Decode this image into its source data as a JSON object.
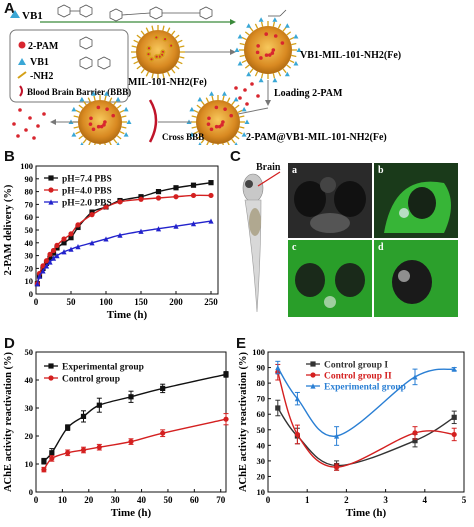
{
  "panels": {
    "A": {
      "label": "A",
      "top_left_label": "VB1",
      "legend": [
        {
          "name": "2-PAM",
          "color": "#d8262f"
        },
        {
          "name": "VB1",
          "color": "#3aa7d6"
        },
        {
          "name": "-NH2",
          "color": "#d4a017"
        },
        {
          "name": "Blood Brain Barrier (BBB)",
          "color": "#c0142a"
        }
      ],
      "mof_label": "MIL-101-NH2(Fe)",
      "vb1_mof_label": "VB1-MIL-101-NH2(Fe)",
      "loading_label": "Loading 2-PAM",
      "loaded_label": "2-PAM@VB1-MIL-101-NH2(Fe)",
      "cross_label": "Cross BBB"
    },
    "B": {
      "label": "B",
      "chart_data": {
        "type": "scatter",
        "xlabel": "Time (h)",
        "ylabel": "2-PAM delivery (%)",
        "xlim": [
          0,
          260
        ],
        "ylim": [
          0,
          100
        ],
        "xticks": [
          0,
          50,
          100,
          150,
          200,
          250
        ],
        "yticks": [
          0,
          10,
          20,
          30,
          40,
          50,
          60,
          70,
          80,
          90,
          100
        ],
        "legend_position": "top-left",
        "series": [
          {
            "name": "pH=7.4 PBS",
            "color": "#111111",
            "marker": "square",
            "x": [
              2,
              5,
              10,
              15,
              20,
              25,
              30,
              40,
              50,
              60,
              80,
              100,
              120,
              150,
              175,
              200,
              225,
              250
            ],
            "y": [
              8,
              14,
              20,
              24,
              28,
              32,
              36,
              40,
              44,
              52,
              64,
              68,
              73,
              76,
              80,
              83,
              85,
              87
            ]
          },
          {
            "name": "pH=4.0 PBS",
            "color": "#d42020",
            "marker": "circle",
            "x": [
              2,
              5,
              10,
              15,
              20,
              25,
              30,
              40,
              50,
              60,
              80,
              100,
              120,
              150,
              175,
              200,
              225,
              250
            ],
            "y": [
              8,
              16,
              22,
              26,
              31,
              34,
              38,
              43,
              47,
              54,
              62,
              68,
              72,
              74,
              75,
              76,
              77,
              77
            ]
          },
          {
            "name": "pH=2.0 PBS",
            "color": "#2222cc",
            "marker": "triangle",
            "x": [
              2,
              5,
              10,
              15,
              20,
              25,
              30,
              40,
              50,
              60,
              80,
              100,
              120,
              150,
              175,
              200,
              225,
              250
            ],
            "y": [
              8,
              14,
              18,
              22,
              25,
              28,
              30,
              33,
              35,
              37,
              40,
              43,
              46,
              49,
              51,
              53,
              55,
              57
            ]
          }
        ]
      }
    },
    "C": {
      "label": "C",
      "brain_label": "Brain",
      "sub_labels": [
        "a",
        "b",
        "c",
        "d"
      ]
    },
    "D": {
      "label": "D",
      "chart_data": {
        "type": "scatter",
        "xlabel": "Time (h)",
        "ylabel": "AChE activity reactivation (%)",
        "xlim": [
          0,
          72
        ],
        "ylim": [
          0,
          50
        ],
        "xticks": [
          0,
          10,
          20,
          30,
          40,
          50,
          60,
          70
        ],
        "yticks": [
          0,
          10,
          20,
          30,
          40,
          50
        ],
        "legend_position": "top-left",
        "series": [
          {
            "name": "Experimental group",
            "color": "#111111",
            "marker": "square",
            "x": [
              3,
              6,
              12,
              18,
              24,
              36,
              48,
              72
            ],
            "y": [
              11,
              14,
              23,
              27,
              31,
              34,
              37,
              42
            ],
            "err": [
              1,
              1.5,
              1,
              2,
              2.5,
              2,
              1.5,
              1
            ]
          },
          {
            "name": "Control group",
            "color": "#d42020",
            "marker": "circle",
            "x": [
              3,
              6,
              12,
              18,
              24,
              36,
              48,
              72
            ],
            "y": [
              8,
              12,
              14,
              15,
              16,
              18,
              21,
              26
            ],
            "err": [
              0.8,
              1,
              1,
              1,
              1,
              1,
              1.2,
              2
            ]
          }
        ]
      }
    },
    "E": {
      "label": "E",
      "chart_data": {
        "type": "scatter",
        "xlabel": "Time (h)",
        "ylabel": "AChE activity reactivation (%)",
        "xlim": [
          0,
          5
        ],
        "ylim": [
          10,
          100
        ],
        "xticks": [
          0,
          1,
          2,
          3,
          4,
          5
        ],
        "yticks": [
          10,
          20,
          30,
          40,
          50,
          60,
          70,
          80,
          90,
          100
        ],
        "legend_position": "top-center",
        "series": [
          {
            "name": "Control group I",
            "color": "#333333",
            "marker": "square",
            "x": [
              0.25,
              0.75,
              1.75,
              3.75,
              4.75
            ],
            "y": [
              64,
              46,
              27,
              43,
              58
            ],
            "err": [
              5,
              5,
              3,
              4,
              4
            ]
          },
          {
            "name": "Control group II",
            "color": "#d42020",
            "marker": "circle",
            "x": [
              0.25,
              0.75,
              1.75,
              3.75,
              4.75
            ],
            "y": [
              87,
              47,
              26,
              48,
              47
            ],
            "err": [
              5,
              6,
              2,
              4,
              4
            ]
          },
          {
            "name": "Experimental group",
            "color": "#2a7fd4",
            "marker": "triangle",
            "x": [
              0.25,
              0.75,
              1.75,
              3.75,
              4.75
            ],
            "y": [
              90,
              70,
              46,
              84,
              89
            ],
            "err": [
              4,
              4,
              6,
              5,
              1
            ]
          }
        ]
      }
    }
  }
}
